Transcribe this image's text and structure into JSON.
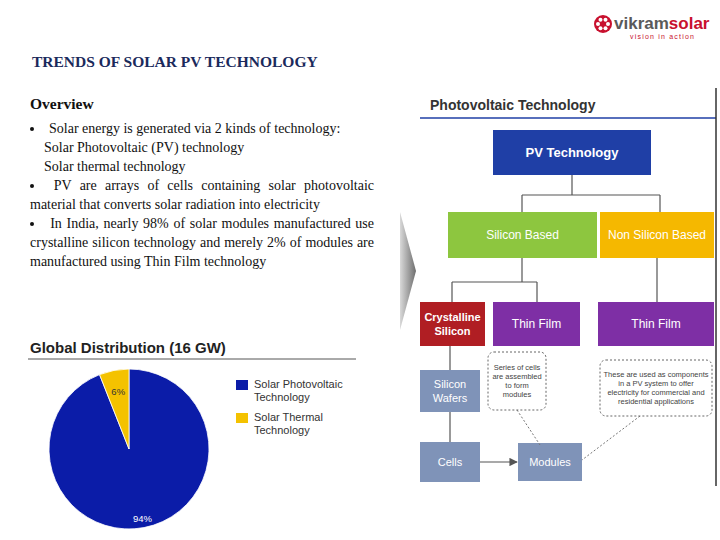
{
  "header": {
    "title": "TRENDS OF SOLAR PV TECHNOLOGY",
    "logo": {
      "brand": "vikram",
      "brand_accent": "solar",
      "tagline": "vision in action"
    }
  },
  "overview": {
    "heading": "Overview",
    "bullets": [
      {
        "text": "Solar energy is generated via 2 kinds of technology:",
        "items": [
          "Solar Photovoltaic (PV) technology",
          "Solar thermal technology"
        ]
      },
      {
        "text": "PV are arrays of cells containing solar photovoltaic material that converts solar radiation into electricity"
      },
      {
        "text": "In India, nearly 98% of solar modules manufactured use crystalline silicon technology and merely 2% of modules are manufactured using Thin Film technology"
      }
    ]
  },
  "chart_data": {
    "type": "pie",
    "title": "Global Distribution (16 GW)",
    "categories": [
      "Solar Photovoltaic Technology",
      "Solar Thermal Technology"
    ],
    "values": [
      94,
      6
    ],
    "value_labels": [
      "94%",
      "6%"
    ],
    "colors": [
      "#0B1CA8",
      "#F4C200"
    ],
    "data_labels": true,
    "legend": "right"
  },
  "diagram": {
    "title": "Photovoltaic Technology",
    "nodes": [
      {
        "label": "PV Technology"
      },
      {
        "label": "Silicon Based"
      },
      {
        "label": "Non Silicon Based"
      },
      {
        "label": "Crystalline Silicon"
      },
      {
        "label": "Thin Film"
      },
      {
        "label": "Thin Film"
      },
      {
        "label": "Silicon Wafers"
      },
      {
        "label": "Cells"
      },
      {
        "label": "Modules"
      }
    ],
    "notes": [
      {
        "text": "Series of cells are assembled to form modules"
      },
      {
        "text": "These are used as components in a PV system to offer electricity for commercial and residential applications"
      }
    ]
  }
}
